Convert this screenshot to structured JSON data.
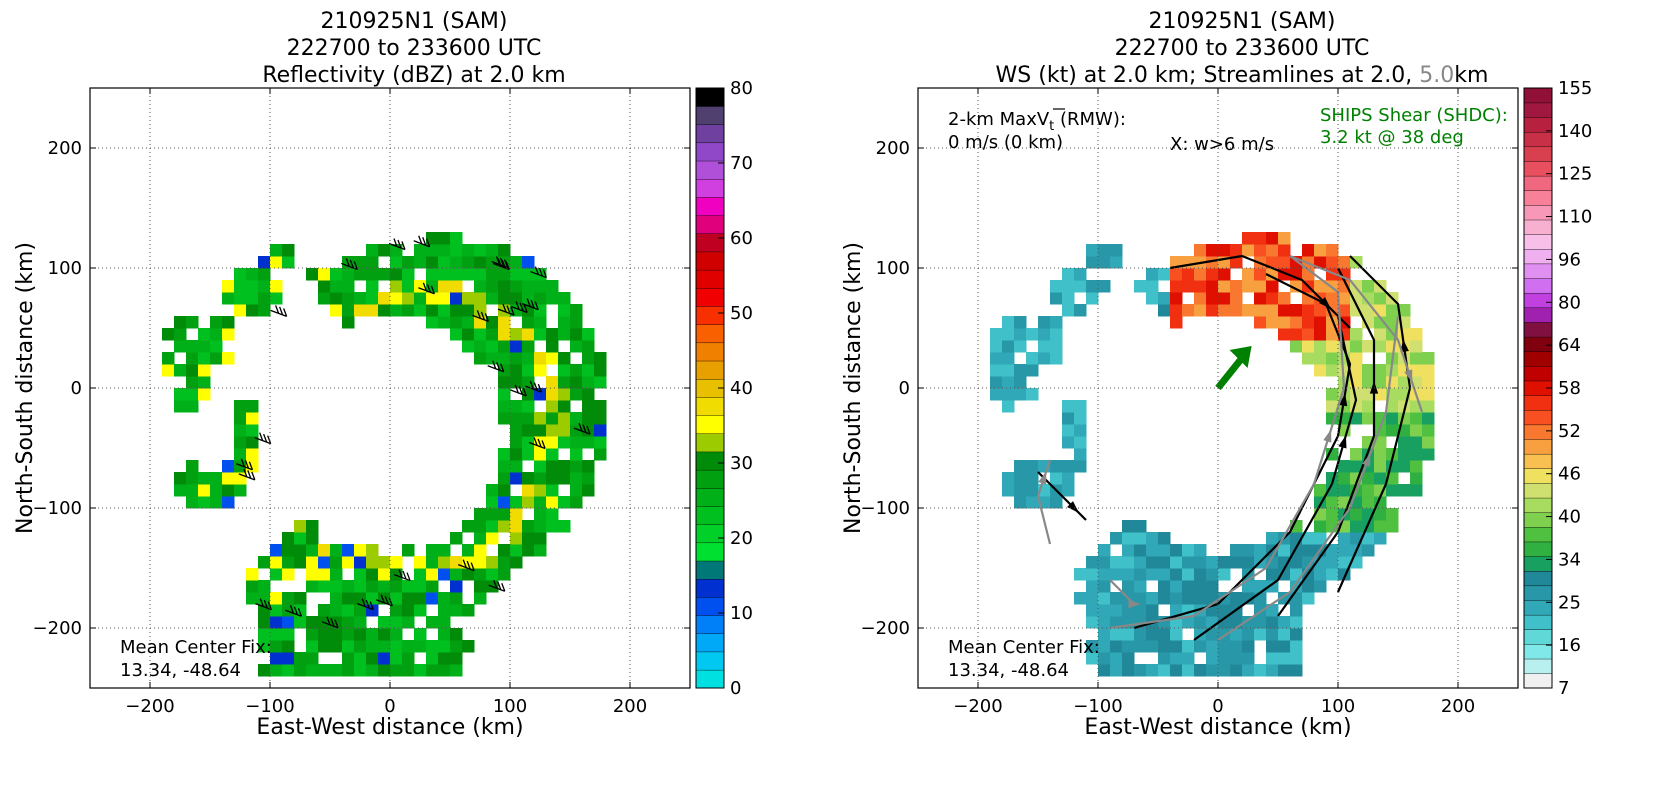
{
  "charts": [
    {
      "id": "left",
      "title_line1": "210925N1 (SAM)",
      "title_line2": "222700 to 233600 UTC",
      "title_line3": "Reflectivity (dBZ) at 2.0 km",
      "xlabel": "East-West distance (km)",
      "ylabel": "North-South distance (km)",
      "xticks": [
        "−200",
        "−100",
        "0",
        "100",
        "200"
      ],
      "yticks": [
        "200",
        "100",
        "0",
        "−100",
        "−200"
      ],
      "center_fix_label": "Mean Center Fix:",
      "center_fix_value": "13.34, -48.64",
      "colorbar_ticks": [
        "80",
        "70",
        "60",
        "50",
        "40",
        "30",
        "20",
        "10",
        "0"
      ]
    },
    {
      "id": "right",
      "title_line1": "210925N1 (SAM)",
      "title_line2": "222700 to 233600 UTC",
      "title_line3a": "WS (kt) at 2.0 km; Streamlines at 2.0,",
      "title_line3b": "5.0",
      "title_line3c": "km",
      "xlabel": "East-West distance (km)",
      "ylabel": "North-South distance (km)",
      "xticks": [
        "−200",
        "−100",
        "0",
        "100",
        "200"
      ],
      "yticks": [
        "200",
        "100",
        "0",
        "−100",
        "−200"
      ],
      "maxvt_line1": "2-km MaxV",
      "maxvt_sub": "t",
      "maxvt_suffix": " (RMW):",
      "maxvt_line2": "0 m/s (0 km)",
      "w_note": "X: w>6 m/s",
      "shear_line1": "SHIPS Shear (SHDC):",
      "shear_line2": "3.2 kt @ 38 deg",
      "center_fix_label": "Mean Center Fix:",
      "center_fix_value": "13.34, -48.64",
      "colorbar_ticks": [
        "155",
        "140",
        "125",
        "110",
        "96",
        "80",
        "64",
        "58",
        "52",
        "46",
        "40",
        "34",
        "25",
        "16",
        "7"
      ]
    }
  ],
  "chart_data": [
    {
      "type": "heatmap",
      "title": "210925N1 (SAM) 222700 to 233600 UTC Reflectivity (dBZ) at 2.0 km",
      "xlabel": "East-West distance (km)",
      "ylabel": "North-South distance (km)",
      "xlim": [
        -250,
        250
      ],
      "ylim": [
        -250,
        250
      ],
      "grid": true,
      "colorbar": {
        "label": "dBZ",
        "min": 0,
        "max": 80,
        "ticks": [
          0,
          10,
          20,
          30,
          40,
          50,
          60,
          70,
          80
        ],
        "colors": [
          "#00e0e0",
          "#00c8f0",
          "#00a8f8",
          "#0080f8",
          "#0050f0",
          "#0030d0",
          "#007878",
          "#00e030",
          "#00d028",
          "#00c020",
          "#00b018",
          "#00a010",
          "#008c08",
          "#9ccc00",
          "#ffff00",
          "#f0dc00",
          "#e8c000",
          "#e8a000",
          "#f08000",
          "#f86000",
          "#f83000",
          "#f00000",
          "#e00000",
          "#d00000",
          "#c00020",
          "#e0007c",
          "#f000c0",
          "#d040e0",
          "#b050d8",
          "#9048c8",
          "#7040a0",
          "#504070",
          "#000000"
        ]
      },
      "center_fix": [
        13.34,
        -48.64
      ],
      "overlay": "wind barbs"
    },
    {
      "type": "heatmap",
      "title": "210925N1 (SAM) 222700 to 233600 UTC WS (kt) at 2.0 km; Streamlines at 2.0, 5.0 km",
      "xlabel": "East-West distance (km)",
      "ylabel": "North-South distance (km)",
      "xlim": [
        -250,
        250
      ],
      "ylim": [
        -250,
        250
      ],
      "grid": true,
      "colorbar": {
        "label": "kt",
        "ticks": [
          7,
          16,
          25,
          34,
          40,
          46,
          52,
          58,
          64,
          80,
          96,
          110,
          125,
          140,
          155
        ],
        "colors": [
          "#f0f0f0",
          "#b8f0f0",
          "#80e8e8",
          "#60d8d8",
          "#40c0c8",
          "#30a8b8",
          "#2898a8",
          "#208898",
          "#18a060",
          "#30b040",
          "#50c040",
          "#80d050",
          "#a8dc60",
          "#d0e070",
          "#f0e060",
          "#f8c050",
          "#f8a040",
          "#f87830",
          "#f85020",
          "#f03010",
          "#e01000",
          "#c00000",
          "#a00000",
          "#800010",
          "#801040",
          "#a020b0",
          "#c040e0",
          "#d070f0",
          "#e090f0",
          "#f0b0f0",
          "#f8c0e8",
          "#f8b0d0",
          "#f898b8",
          "#f88098",
          "#f06880",
          "#e85060",
          "#d84050",
          "#c83048",
          "#b82040",
          "#a01840",
          "#901038"
        ]
      },
      "center_fix": [
        13.34,
        -48.64
      ],
      "max_vt_rmw": "0 m/s (0 km)",
      "ships_shear": {
        "magnitude_kt": 3.2,
        "direction_deg": 38
      },
      "overlay": "streamlines"
    }
  ]
}
